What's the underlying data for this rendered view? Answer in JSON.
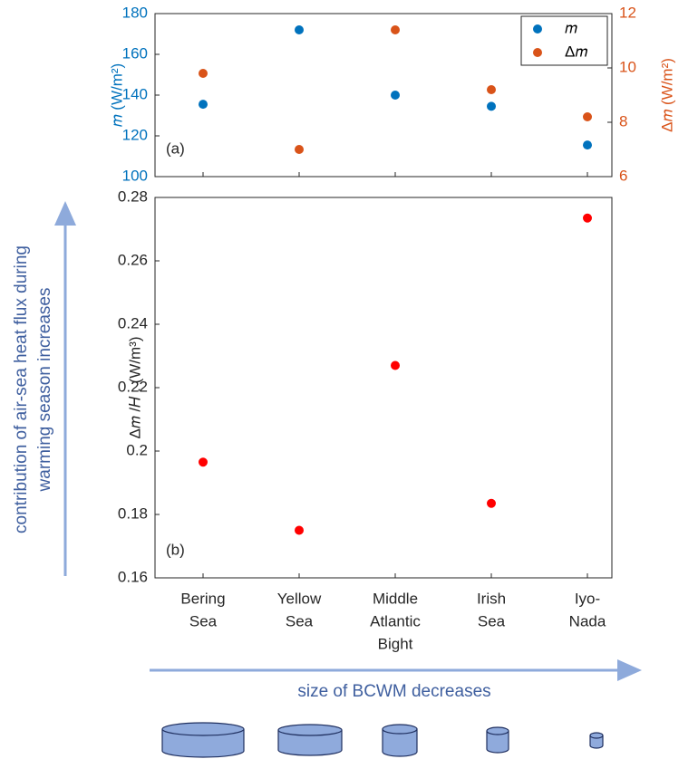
{
  "chart_data": [
    {
      "type": "scatter",
      "panel_label": "(a)",
      "ylabel": "𝑚 (W/m²)",
      "y2label": "Δ𝑚 (W/m²)",
      "categories": [
        null,
        null,
        null,
        null,
        null
      ],
      "ylim": [
        100,
        180
      ],
      "yticks": [
        100,
        120,
        140,
        160,
        180
      ],
      "y2lim": [
        6,
        12
      ],
      "y2ticks": [
        6,
        8,
        10,
        12
      ],
      "legend": "upper right",
      "series": [
        {
          "name": "𝑚",
          "color": "#0072bd",
          "values": [
            135.5,
            172,
            140,
            134.5,
            115.5
          ]
        },
        {
          "name": "Δ𝑚",
          "color": "#d95319",
          "axis": "y2",
          "values": [
            9.8,
            7.0,
            11.4,
            9.2,
            8.2
          ]
        }
      ]
    },
    {
      "type": "scatter",
      "panel_label": "(b)",
      "ylabel": "Δ𝑚 /𝐻 . (W/m³)",
      "categories": [
        [
          "Bering",
          "Sea"
        ],
        [
          "Yellow",
          "Sea"
        ],
        [
          "Middle",
          "Atlantic",
          "Bight"
        ],
        [
          "Irish",
          "Sea"
        ],
        [
          "Iyo-",
          "Nada"
        ]
      ],
      "ylim": [
        0.16,
        0.28
      ],
      "yticks": [
        0.16,
        0.18,
        0.2,
        0.22,
        0.24,
        0.26,
        0.28
      ],
      "series": [
        {
          "color": "#ff0000",
          "values": [
            0.1965,
            0.175,
            0.227,
            0.1835,
            0.2735
          ]
        }
      ],
      "annotations": [
        [
          "contribution of air-sea heat flux during",
          "warming season increases"
        ],
        "size of BCWM decreases"
      ]
    }
  ]
}
